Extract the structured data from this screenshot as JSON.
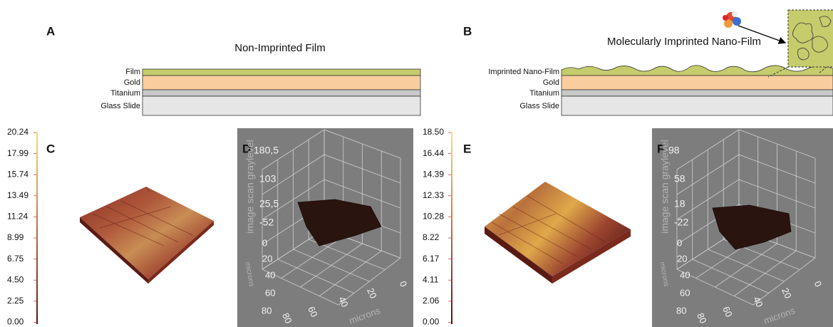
{
  "panel_a": {
    "label": "A",
    "title": "Non-Imprinted Film",
    "layers": [
      "Film",
      "Gold",
      "Titanium",
      "Glass Slide"
    ]
  },
  "panel_b": {
    "label": "B",
    "title": "Molecularly Imprinted Nano-Film",
    "layers": [
      "Imprinted Nano-Film",
      "Gold",
      "Titanium",
      "Glass Slide"
    ]
  },
  "scale_c": [
    "20.24",
    "17.99",
    "15.74",
    "13.49",
    "11.24",
    "8.99",
    "6.75",
    "4.50",
    "2.25",
    "0.00"
  ],
  "panel_c": {
    "label": "C"
  },
  "panel_d": {
    "label": "D",
    "z_axis_title": "image scan graylevel",
    "z_ticks": [
      "180,5",
      "103",
      "25,5",
      "-52"
    ],
    "y_axis_title": "microns",
    "y_ticks": [
      "0",
      "20",
      "40",
      "60",
      "80"
    ],
    "x_ticks": [
      "80",
      "60",
      "40",
      "20",
      "0"
    ],
    "x_axis_title": "microns"
  },
  "scale_e": [
    "18.50",
    "16.44",
    "14.39",
    "12.33",
    "10.28",
    "8.22",
    "6.17",
    "4.11",
    "2.06",
    "0.00"
  ],
  "panel_e": {
    "label": "E"
  },
  "panel_f": {
    "label": "F",
    "z_axis_title": "image scan graylevel",
    "z_ticks": [
      "98",
      "58",
      "18",
      "-22"
    ],
    "y_axis_title": "microns",
    "y_ticks": [
      "0",
      "20",
      "40",
      "60",
      "80"
    ],
    "x_ticks": [
      "80",
      "60",
      "40",
      "20",
      "0"
    ],
    "x_axis_title": "microns"
  }
}
